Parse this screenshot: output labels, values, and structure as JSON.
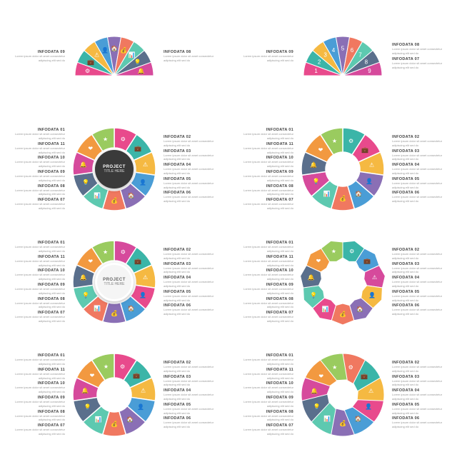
{
  "palette": {
    "pink": "#e84a8c",
    "teal": "#3bb5a8",
    "yellow": "#f5b942",
    "blue": "#4a9dd6",
    "purple": "#8a6fb5",
    "coral": "#f07860",
    "mint": "#5dc9b0",
    "navy": "#5a6f8c",
    "magenta": "#d64a9c",
    "orange": "#f29940",
    "lime": "#9acb5f"
  },
  "lorem": "Lorem ipsum dolor sit amet consectetur",
  "lorem2": "adipiscing elit sed do",
  "icons": [
    "⚙",
    "💼",
    "⚠",
    "👤",
    "🏠",
    "💰",
    "📊",
    "💡",
    "🔔",
    "❤",
    "★",
    "📈"
  ],
  "center_title": "PROJECT",
  "center_sub": "TITLE HERE",
  "cards": [
    {
      "type": "half",
      "segments": 9,
      "left": [
        "09"
      ],
      "right": [
        "08"
      ],
      "colors": [
        "pink",
        "teal",
        "yellow",
        "blue",
        "purple",
        "coral",
        "mint",
        "navy",
        "magenta"
      ]
    },
    {
      "type": "half_num",
      "segments": 9,
      "left": [
        "09"
      ],
      "right": [
        "08",
        "07"
      ],
      "colors": [
        "pink",
        "teal",
        "yellow",
        "blue",
        "purple",
        "coral",
        "mint",
        "navy",
        "magenta"
      ]
    },
    {
      "type": "donut",
      "segments": 11,
      "center": "dark",
      "left": [
        "01",
        "11",
        "10",
        "09",
        "08",
        "07"
      ],
      "right": [
        "02",
        "03",
        "04",
        "05",
        "06"
      ],
      "colors": [
        "pink",
        "teal",
        "yellow",
        "blue",
        "purple",
        "coral",
        "mint",
        "navy",
        "magenta",
        "orange",
        "lime"
      ]
    },
    {
      "type": "puzzle",
      "segments": 11,
      "left": [
        "01",
        "11",
        "10",
        "09",
        "08",
        "07"
      ],
      "right": [
        "02",
        "03",
        "04",
        "05",
        "06"
      ],
      "colors": [
        "teal",
        "pink",
        "yellow",
        "purple",
        "blue",
        "coral",
        "mint",
        "magenta",
        "navy",
        "orange",
        "lime"
      ]
    },
    {
      "type": "donut",
      "segments": 11,
      "center": "light",
      "left": [
        "01",
        "11",
        "10",
        "09",
        "08",
        "07"
      ],
      "right": [
        "02",
        "03",
        "04",
        "05",
        "06"
      ],
      "colors": [
        "magenta",
        "teal",
        "yellow",
        "pink",
        "blue",
        "purple",
        "coral",
        "mint",
        "navy",
        "orange",
        "lime"
      ]
    },
    {
      "type": "arrows",
      "segments": 11,
      "left": [
        "01",
        "11",
        "10",
        "09",
        "08",
        "07"
      ],
      "right": [
        "02",
        "03",
        "04",
        "05",
        "06"
      ],
      "colors": [
        "teal",
        "blue",
        "magenta",
        "yellow",
        "purple",
        "coral",
        "pink",
        "mint",
        "navy",
        "orange",
        "lime"
      ]
    },
    {
      "type": "chevron",
      "segments": 11,
      "left": [
        "01",
        "11",
        "10",
        "09",
        "08",
        "07"
      ],
      "right": [
        "02",
        "03",
        "04",
        "05",
        "06"
      ],
      "colors": [
        "pink",
        "teal",
        "yellow",
        "blue",
        "purple",
        "coral",
        "mint",
        "navy",
        "magenta",
        "orange",
        "lime"
      ]
    },
    {
      "type": "spiral",
      "segments": 11,
      "left": [
        "01",
        "11",
        "10",
        "09",
        "08",
        "07"
      ],
      "right": [
        "02",
        "03",
        "04",
        "05",
        "06"
      ],
      "colors": [
        "coral",
        "teal",
        "yellow",
        "pink",
        "blue",
        "purple",
        "mint",
        "navy",
        "magenta",
        "orange",
        "lime"
      ]
    }
  ]
}
